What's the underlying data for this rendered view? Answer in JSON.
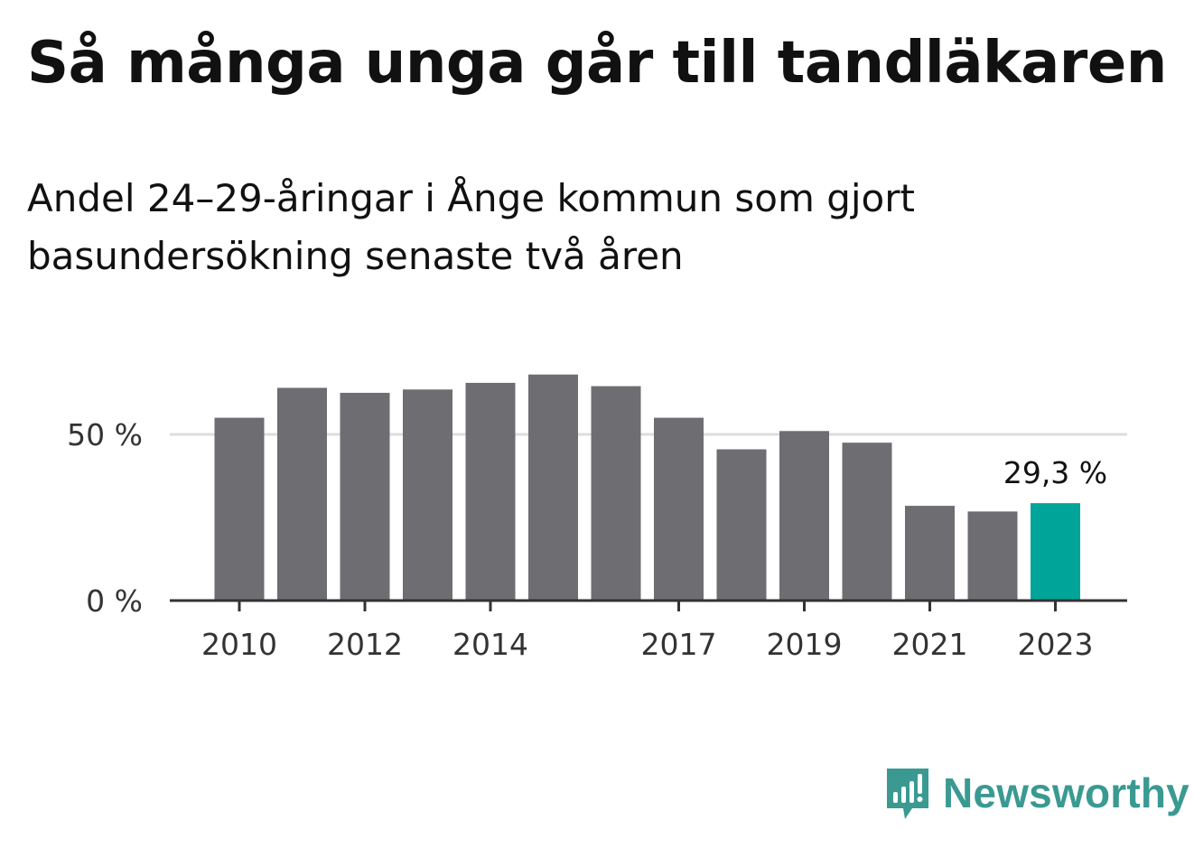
{
  "chart_data": {
    "type": "bar",
    "title": "Så många unga går till tandläkaren",
    "subtitle": "Andel 24–29-åringar i Ånge kommun som gjort basundersökning senaste två åren",
    "categories": [
      "2010",
      "2011",
      "2012",
      "2013",
      "2014",
      "2015",
      "2016",
      "2017",
      "2018",
      "2019",
      "2020",
      "2021",
      "2022",
      "2023"
    ],
    "x_tick_labels": [
      "2010",
      "2012",
      "2014",
      "2017",
      "2019",
      "2021",
      "2023"
    ],
    "values": [
      55.0,
      64.0,
      62.5,
      63.5,
      65.5,
      68.0,
      64.5,
      55.0,
      45.5,
      51.0,
      47.5,
      28.5,
      26.8,
      29.3
    ],
    "ylim": [
      0,
      72
    ],
    "y_ticks": [
      0,
      50
    ],
    "y_tick_labels": [
      "0 %",
      "50 %"
    ],
    "grid": true,
    "highlight_index": 13,
    "highlight_label": "29,3 %",
    "colors": {
      "bar": "#6e6d72",
      "highlight": "#00a499",
      "grid": "#dddddd",
      "axis": "#333333"
    },
    "xlabel": "",
    "ylabel": ""
  },
  "branding": {
    "name": "Newsworthy",
    "icon": "newsworthy-logo-icon",
    "color": "#3a9a92"
  }
}
